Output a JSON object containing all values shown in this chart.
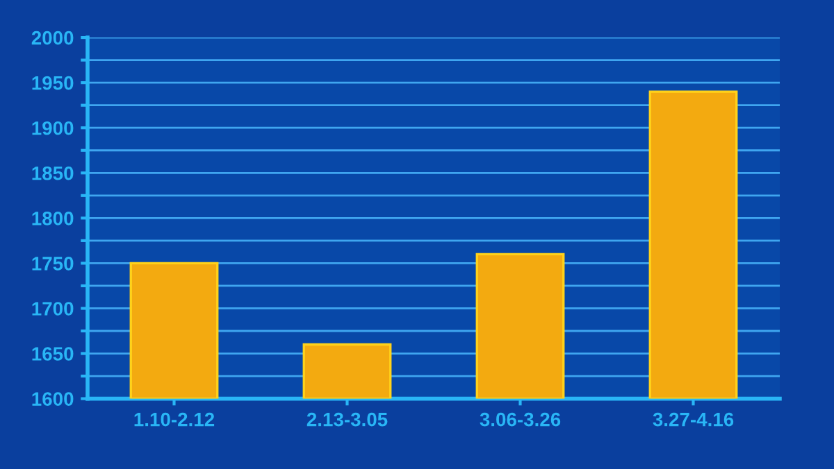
{
  "chart_data": {
    "type": "bar",
    "categories": [
      "1.10-2.12",
      "2.13-3.05",
      "3.06-3.26",
      "3.27-4.16"
    ],
    "values": [
      1750,
      1660,
      1760,
      1940
    ],
    "color": "#f3aa10",
    "ylim": [
      1600,
      2000
    ],
    "yticks": [
      1600,
      {
        "value": 1625,
        "label": null
      },
      1650,
      {
        "value": 1675,
        "label": null
      },
      1700,
      {
        "value": 1725,
        "label": null
      },
      1750,
      {
        "value": 1775,
        "label": null
      },
      1800,
      {
        "value": 1825,
        "label": null
      },
      1850,
      {
        "value": 1875,
        "label": null
      },
      1900,
      {
        "value": 1925,
        "label": null
      },
      1950,
      {
        "value": 1975,
        "label": null
      },
      2000
    ],
    "grid": "y"
  }
}
